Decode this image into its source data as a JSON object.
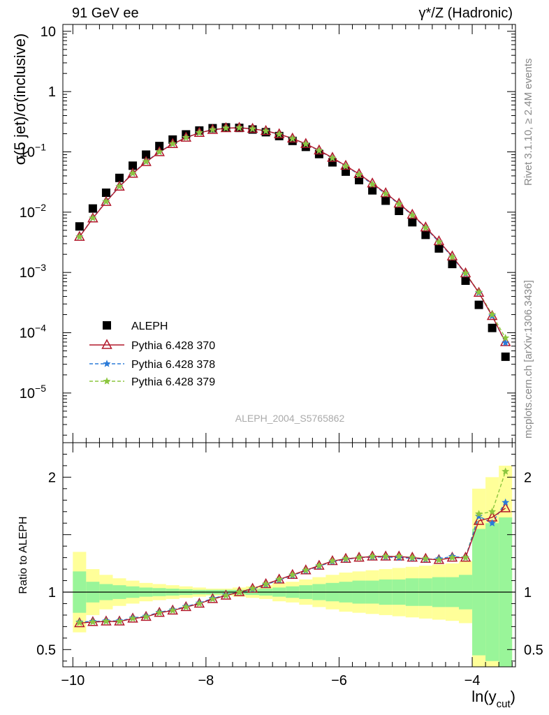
{
  "header": {
    "left": "91 GeV ee",
    "right": "γ*/Z (Hadronic)"
  },
  "side_labels": {
    "top": "Rivet 3.1.10, ≥ 2.4M events",
    "bottom": "mcplots.cern.ch [arXiv:1306.3436]"
  },
  "chart_data": [
    {
      "type": "scatter",
      "panel": "main",
      "ylabel": "σ(5 jet)/σ(inclusive)",
      "xlabel": "ln(y_cut)",
      "annotation": "ALEPH_2004_S5765862",
      "yscale": "log",
      "ylim": [
        1.5e-06,
        13
      ],
      "xlim": [
        -10.15,
        -3.35
      ],
      "legend_position": "lower-left",
      "x": [
        -9.9,
        -9.7,
        -9.5,
        -9.3,
        -9.1,
        -8.9,
        -8.7,
        -8.5,
        -8.3,
        -8.1,
        -7.9,
        -7.7,
        -7.5,
        -7.3,
        -7.1,
        -6.9,
        -6.7,
        -6.5,
        -6.3,
        -6.1,
        -5.9,
        -5.7,
        -5.5,
        -5.3,
        -5.1,
        -4.9,
        -4.7,
        -4.5,
        -4.3,
        -4.1,
        -3.9,
        -3.7,
        -3.5
      ],
      "series": [
        {
          "name": "ALEPH",
          "style": "black-square",
          "values": [
            0.0058,
            0.0115,
            0.021,
            0.037,
            0.059,
            0.09,
            0.125,
            0.16,
            0.195,
            0.226,
            0.247,
            0.255,
            0.25,
            0.235,
            0.212,
            0.183,
            0.152,
            0.121,
            0.092,
            0.067,
            0.047,
            0.034,
            0.023,
            0.0155,
            0.0105,
            0.0068,
            0.0042,
            0.0025,
            0.00138,
            0.00073,
            0.00029,
            0.00012,
            4e-05
          ]
        },
        {
          "name": "Pythia 6.428 370",
          "style": "red-open-triangle-solid",
          "values": [
            0.0039,
            0.0079,
            0.0148,
            0.0265,
            0.0435,
            0.068,
            0.099,
            0.135,
            0.172,
            0.207,
            0.232,
            0.248,
            0.251,
            0.242,
            0.223,
            0.197,
            0.167,
            0.136,
            0.106,
            0.08,
            0.059,
            0.043,
            0.03,
            0.0207,
            0.0139,
            0.0091,
            0.0056,
            0.0033,
            0.00185,
            0.00097,
            0.00046,
            0.00019,
            7e-05
          ]
        },
        {
          "name": "Pythia 6.428 378",
          "style": "blue-star-dashed",
          "values": [
            0.0039,
            0.008,
            0.015,
            0.0268,
            0.044,
            0.069,
            0.1,
            0.136,
            0.173,
            0.208,
            0.233,
            0.248,
            0.251,
            0.241,
            0.222,
            0.196,
            0.166,
            0.135,
            0.105,
            0.079,
            0.058,
            0.042,
            0.029,
            0.0202,
            0.0136,
            0.0089,
            0.0055,
            0.0032,
            0.0018,
            0.00095,
            0.00046,
            0.00019,
            6.8e-05
          ]
        },
        {
          "name": "Pythia 6.428 379",
          "style": "green-star-dashed",
          "values": [
            0.0039,
            0.008,
            0.015,
            0.0268,
            0.044,
            0.069,
            0.1,
            0.136,
            0.173,
            0.208,
            0.233,
            0.248,
            0.251,
            0.241,
            0.222,
            0.196,
            0.166,
            0.135,
            0.105,
            0.079,
            0.058,
            0.042,
            0.029,
            0.0202,
            0.0136,
            0.0089,
            0.0055,
            0.0032,
            0.0018,
            0.00097,
            0.00047,
            0.0002,
            8.2e-05
          ]
        }
      ]
    },
    {
      "type": "line",
      "panel": "ratio",
      "ylabel": "Ratio to ALEPH",
      "xlabel": "ln(y_cut)",
      "ylim": [
        0.35,
        2.3
      ],
      "xlim": [
        -10.15,
        -3.35
      ],
      "reference_line": 1,
      "x": [
        -9.9,
        -9.7,
        -9.5,
        -9.3,
        -9.1,
        -8.9,
        -8.7,
        -8.5,
        -8.3,
        -8.1,
        -7.9,
        -7.7,
        -7.5,
        -7.3,
        -7.1,
        -6.9,
        -6.7,
        -6.5,
        -6.3,
        -6.1,
        -5.9,
        -5.7,
        -5.5,
        -5.3,
        -5.1,
        -4.9,
        -4.7,
        -4.5,
        -4.3,
        -4.1,
        -3.9,
        -3.7,
        -3.5
      ],
      "bands": {
        "stat_halfwidth": [
          0.18,
          0.09,
          0.07,
          0.06,
          0.05,
          0.04,
          0.035,
          0.03,
          0.025,
          0.02,
          0.02,
          0.02,
          0.02,
          0.025,
          0.03,
          0.04,
          0.05,
          0.06,
          0.07,
          0.08,
          0.09,
          0.1,
          0.1,
          0.11,
          0.11,
          0.12,
          0.12,
          0.13,
          0.13,
          0.15,
          0.55,
          0.6,
          0.65
        ],
        "total_halfwidth": [
          0.35,
          0.2,
          0.15,
          0.12,
          0.1,
          0.08,
          0.07,
          0.06,
          0.05,
          0.04,
          0.03,
          0.03,
          0.04,
          0.05,
          0.06,
          0.08,
          0.09,
          0.11,
          0.13,
          0.15,
          0.17,
          0.18,
          0.19,
          0.2,
          0.21,
          0.22,
          0.23,
          0.24,
          0.25,
          0.27,
          0.9,
          1.0,
          1.1
        ]
      },
      "series": [
        {
          "name": "Pythia 6.428 370",
          "values": [
            0.73,
            0.74,
            0.745,
            0.745,
            0.77,
            0.785,
            0.82,
            0.84,
            0.87,
            0.9,
            0.94,
            0.97,
            1.0,
            1.03,
            1.07,
            1.11,
            1.15,
            1.19,
            1.23,
            1.27,
            1.29,
            1.3,
            1.31,
            1.31,
            1.31,
            1.3,
            1.29,
            1.28,
            1.3,
            1.3,
            1.62,
            1.65,
            1.73
          ]
        },
        {
          "name": "Pythia 6.428 378",
          "values": [
            0.74,
            0.745,
            0.75,
            0.75,
            0.775,
            0.79,
            0.825,
            0.845,
            0.875,
            0.905,
            0.945,
            0.975,
            1.0,
            1.025,
            1.065,
            1.105,
            1.145,
            1.185,
            1.225,
            1.265,
            1.285,
            1.3,
            1.305,
            1.305,
            1.3,
            1.295,
            1.285,
            1.29,
            1.31,
            1.3,
            1.66,
            1.6,
            1.78
          ]
        },
        {
          "name": "Pythia 6.428 379",
          "values": [
            0.735,
            0.74,
            0.745,
            0.745,
            0.77,
            0.785,
            0.82,
            0.84,
            0.87,
            0.9,
            0.94,
            0.97,
            1.0,
            1.03,
            1.07,
            1.11,
            1.15,
            1.19,
            1.23,
            1.27,
            1.29,
            1.3,
            1.31,
            1.31,
            1.31,
            1.3,
            1.29,
            1.28,
            1.3,
            1.3,
            1.68,
            1.7,
            2.05
          ]
        }
      ]
    }
  ],
  "colors": {
    "aleph": "#000000",
    "p370": "#b2182b",
    "p378": "#2b7bd8",
    "p379": "#8cc63f",
    "band_stat": "#99f599",
    "band_total": "#ffff99"
  }
}
